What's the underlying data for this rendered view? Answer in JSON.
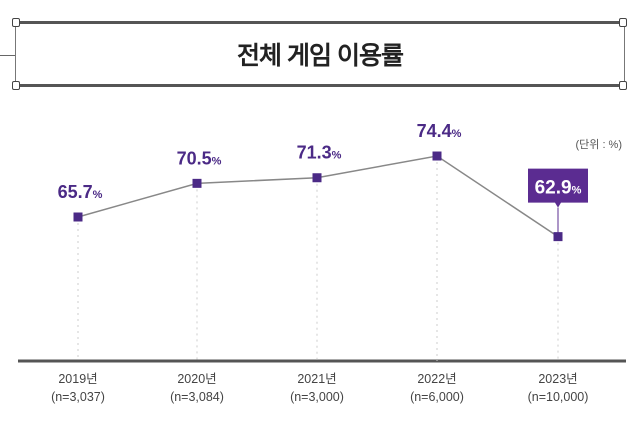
{
  "chart_data": {
    "type": "line",
    "title": "전체 게임 이용률",
    "unit_note": "(단위 : %)",
    "categories": [
      "2019년",
      "2020년",
      "2021년",
      "2022년",
      "2023년"
    ],
    "sample_sizes": [
      "(n=3,037)",
      "(n=3,084)",
      "(n=3,000)",
      "(n=6,000)",
      "(n=10,000)"
    ],
    "values": [
      65.7,
      70.5,
      71.3,
      74.4,
      62.9
    ],
    "data_labels": [
      "65.7",
      "70.5",
      "71.3",
      "74.4",
      "62.9"
    ],
    "label_suffix": "%",
    "highlighted_index": 4,
    "grid": false,
    "colors": {
      "marker": "#4b2a86",
      "line": "#888888",
      "label": "#4b2a86",
      "highlight_bg": "#5b2c91",
      "highlight_text": "#ffffff"
    }
  }
}
